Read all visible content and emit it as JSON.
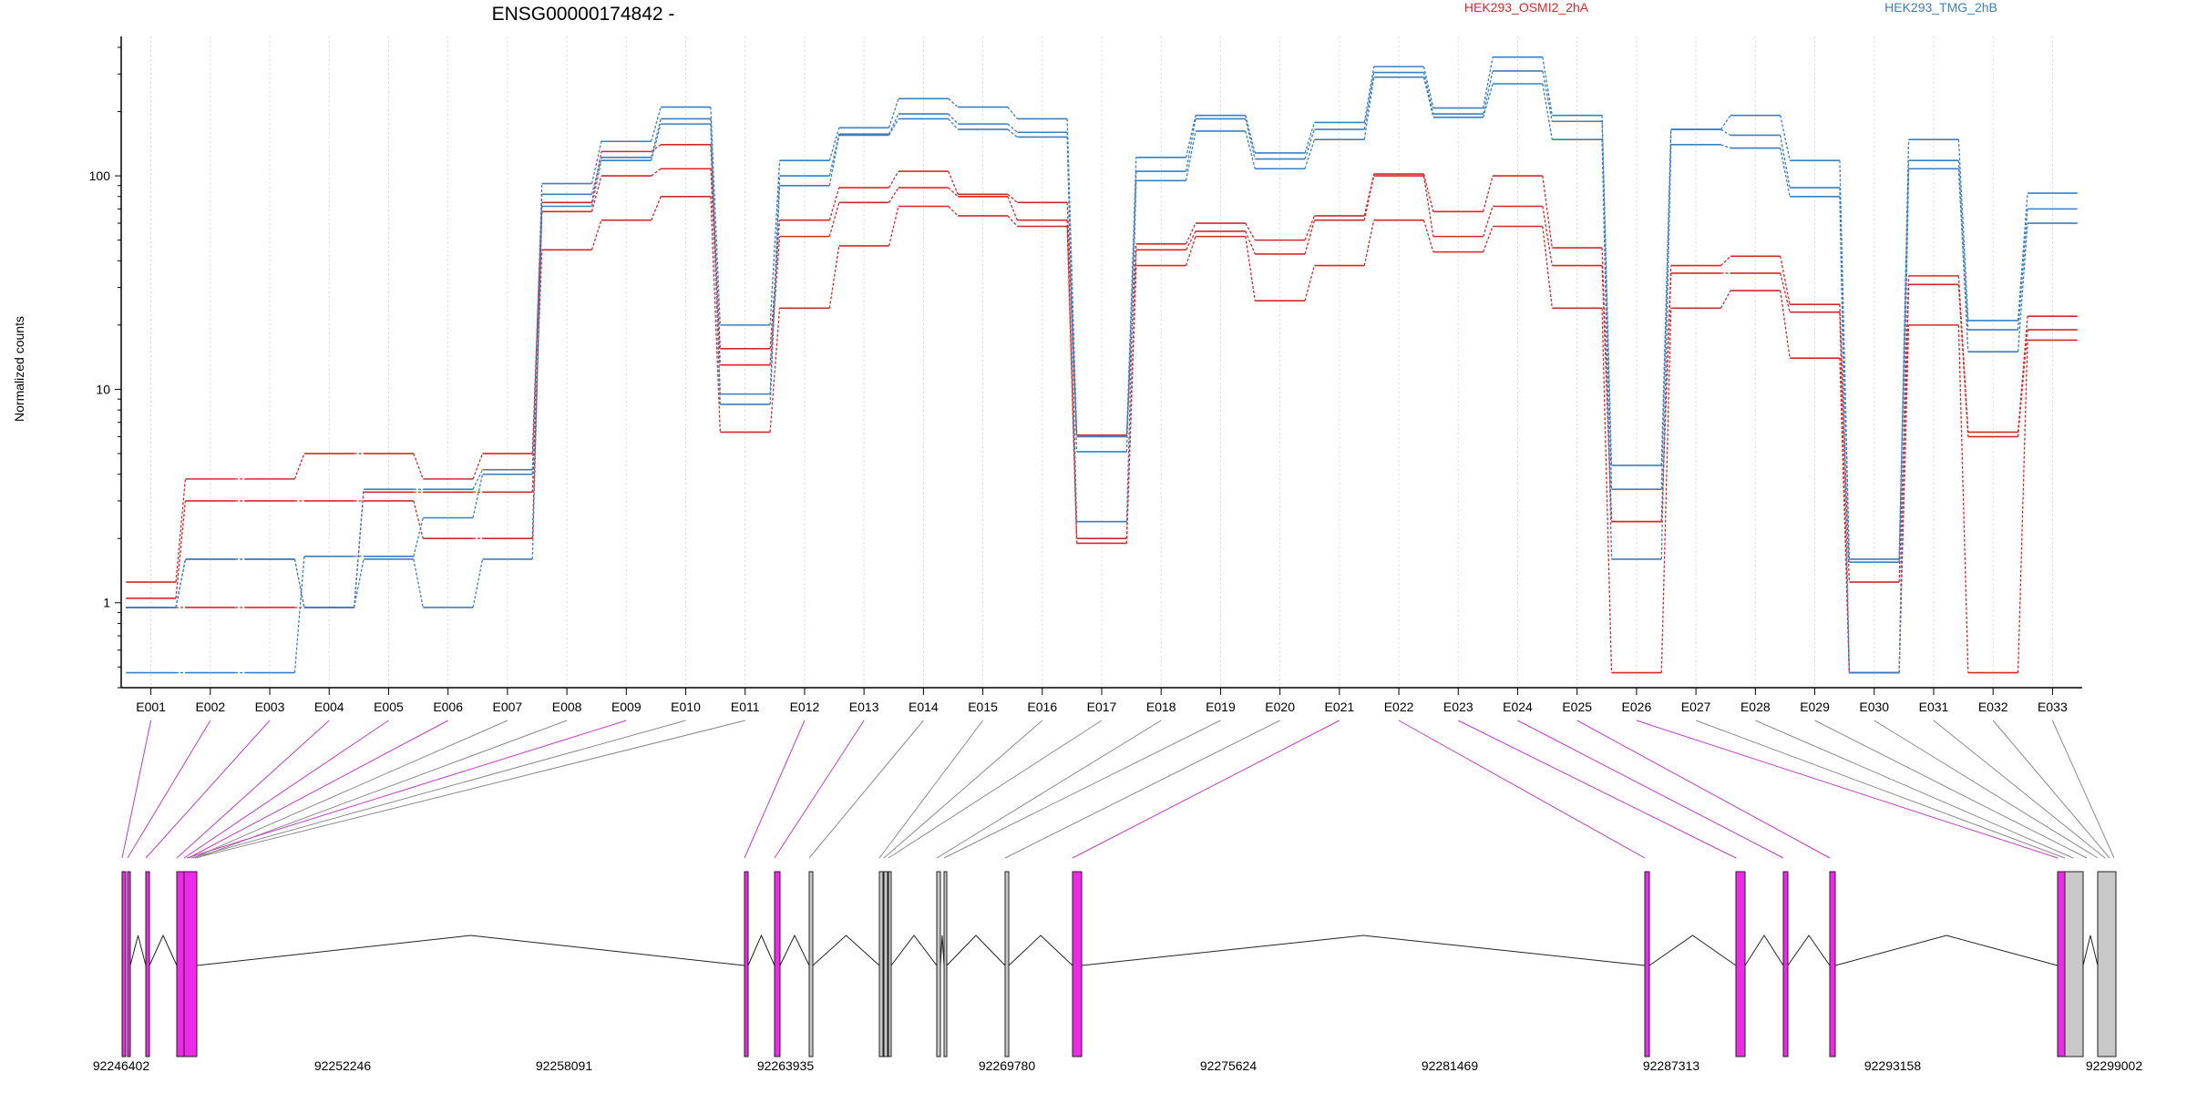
{
  "chart_data": {
    "type": "line",
    "title": "ENSG00000174842 -",
    "ylabel": "Normalized counts",
    "yscale": "log",
    "ylim": [
      0.4,
      450
    ],
    "yticks": [
      "1",
      "10",
      "100"
    ],
    "grid": true,
    "legend_position": "top",
    "categories": [
      "E001",
      "E002",
      "E003",
      "E004",
      "E005",
      "E006",
      "E007",
      "E008",
      "E009",
      "E010",
      "E011",
      "E012",
      "E013",
      "E014",
      "E015",
      "E016",
      "E017",
      "E018",
      "E019",
      "E020",
      "E021",
      "E022",
      "E023",
      "E024",
      "E025",
      "E026",
      "E027",
      "E028",
      "E029",
      "E030",
      "E031",
      "E032",
      "E033"
    ],
    "conditions": [
      {
        "label": "HEK293_OSMI2_2hA",
        "color": "#d62728"
      },
      {
        "label": "HEK293_TMG_2hB",
        "color": "#3a7fc1"
      }
    ],
    "series": [
      {
        "condition": 0,
        "values": [
          1.25,
          3.8,
          3.8,
          5.0,
          5.0,
          3.8,
          5.0,
          75,
          130,
          140,
          15.5,
          62,
          88,
          105,
          82,
          75,
          6.1,
          48,
          60,
          50,
          65,
          102,
          68,
          100,
          46,
          2.4,
          38,
          42,
          25,
          1.25,
          34,
          6.3,
          22
        ]
      },
      {
        "condition": 0,
        "values": [
          1.05,
          3.0,
          3.0,
          3.0,
          3.0,
          2.0,
          2.0,
          68,
          100,
          108,
          13,
          52,
          75,
          88,
          80,
          62,
          2.0,
          45,
          55,
          43,
          62,
          100,
          52,
          72,
          38,
          2.4,
          35,
          35,
          23,
          0.47,
          31,
          6.0,
          19
        ]
      },
      {
        "condition": 0,
        "values": [
          0.95,
          0.95,
          0.95,
          0.95,
          3.3,
          3.3,
          3.3,
          45,
          62,
          80,
          6.3,
          24,
          47,
          72,
          65,
          58,
          1.9,
          38,
          52,
          26,
          38,
          62,
          44,
          58,
          24,
          0.47,
          24,
          29,
          14,
          0.47,
          20,
          0.47,
          17
        ]
      },
      {
        "condition": 1,
        "values": [
          0.95,
          1.6,
          1.6,
          0.95,
          3.4,
          3.4,
          4.2,
          92,
          145,
          210,
          20,
          118,
          168,
          230,
          210,
          185,
          6.0,
          122,
          192,
          128,
          178,
          325,
          208,
          360,
          192,
          4.4,
          165,
          192,
          118,
          1.6,
          148,
          21,
          83
        ]
      },
      {
        "condition": 1,
        "values": [
          0.47,
          0.47,
          0.47,
          1.65,
          1.65,
          2.5,
          4.0,
          82,
          122,
          185,
          9.5,
          100,
          157,
          195,
          175,
          160,
          5.1,
          105,
          185,
          120,
          165,
          305,
          195,
          310,
          180,
          3.4,
          165,
          155,
          88,
          1.55,
          118,
          19,
          70
        ]
      },
      {
        "condition": 1,
        "values": [
          0.95,
          1.6,
          1.6,
          0.95,
          1.6,
          0.95,
          1.6,
          72,
          118,
          175,
          8.5,
          90,
          155,
          185,
          165,
          152,
          2.4,
          95,
          162,
          108,
          148,
          290,
          188,
          270,
          148,
          1.6,
          140,
          135,
          80,
          0.47,
          108,
          15,
          60
        ]
      }
    ],
    "gene_model": {
      "coordinate_labels": [
        "92246402",
        "92252246",
        "92258091",
        "92263935",
        "92269780",
        "92275624",
        "92281469",
        "92287313",
        "92293158",
        "92299002"
      ],
      "highlight_color": "#ee2ae8",
      "neutral_color": "#c8c8c8"
    }
  }
}
